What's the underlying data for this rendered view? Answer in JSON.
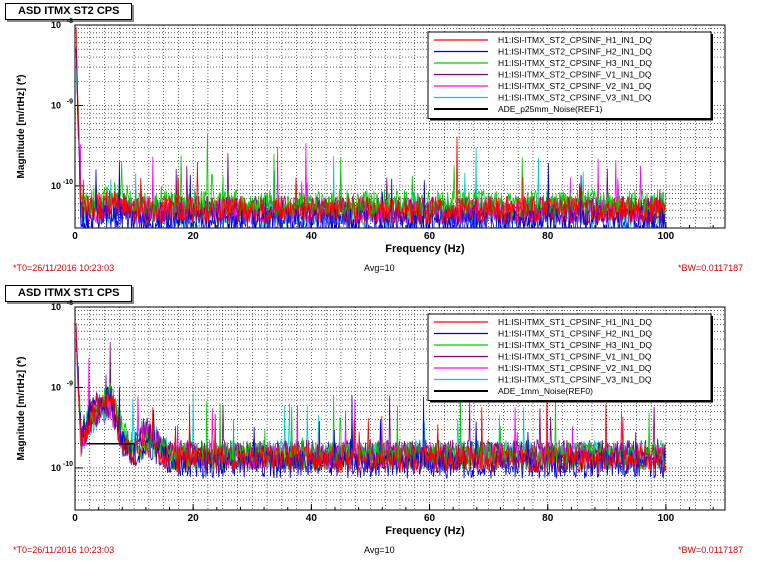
{
  "panels": [
    {
      "title": "ASD ITMX ST2 CPS",
      "t0": "*T0=26/11/2016 10:23:03",
      "avg": "Avg=10",
      "bw": "*BW=0.0117187"
    },
    {
      "title": "ASD ITMX ST1 CPS",
      "t0": "*T0=26/11/2016 10:23:03",
      "avg": "Avg=10",
      "bw": "*BW=0.0117187"
    }
  ],
  "colors": {
    "red": "#ff0000",
    "blue": "#0000dd",
    "green": "#00cc00",
    "purple": "#800080",
    "magenta": "#ff00ff",
    "cyan": "#00cccc",
    "black": "#000000",
    "brown": "#a07850"
  },
  "chart_data": [
    {
      "type": "line",
      "title": "ASD ITMX ST2 CPS",
      "xlabel": "Frequency (Hz)",
      "ylabel": "Magnitude [m/rtHz] (*)",
      "xlim": [
        0,
        110
      ],
      "ylim": [
        3e-11,
        1e-08
      ],
      "yscale": "log",
      "x_ticks": [
        0,
        20,
        40,
        60,
        80,
        100
      ],
      "y_ticks": [
        {
          "value": 1e-10,
          "label": "10-10"
        },
        {
          "value": 1e-09,
          "label": "10-9"
        },
        {
          "value": 1e-08,
          "label": "10-8"
        }
      ],
      "grid": true,
      "legend_position": "top-right",
      "series": [
        {
          "name": "H1:ISI-ITMX_ST2_CPSINF_H1_IN1_DQ",
          "color": "#ff0000",
          "x": [
            0.2,
            1,
            2,
            5,
            8,
            10,
            20,
            40,
            60,
            80,
            100
          ],
          "values": [
            8e-09,
            6e-11,
            5e-11,
            6e-11,
            6e-11,
            5e-11,
            5e-11,
            5e-11,
            5e-11,
            5e-11,
            5e-11
          ]
        },
        {
          "name": "H1:ISI-ITMX_ST2_CPSINF_H2_IN1_DQ",
          "color": "#0000dd",
          "x": [
            0.2,
            1,
            2,
            5,
            8,
            10,
            20,
            40,
            60,
            80,
            100
          ],
          "values": [
            6e-09,
            4e-11,
            3.5e-11,
            4e-11,
            4e-11,
            3.5e-11,
            3.5e-11,
            3.5e-11,
            3.5e-11,
            3.5e-11,
            3.5e-11
          ]
        },
        {
          "name": "H1:ISI-ITMX_ST2_CPSINF_H3_IN1_DQ",
          "color": "#00cc00",
          "x": [
            0.2,
            1,
            2,
            5,
            8,
            10,
            20,
            40,
            60,
            80,
            100
          ],
          "values": [
            5e-09,
            6e-11,
            6e-11,
            7e-11,
            8e-11,
            6e-11,
            6e-11,
            6e-11,
            6e-11,
            6e-11,
            6e-11
          ]
        },
        {
          "name": "H1:ISI-ITMX_ST2_CPSINF_V1_IN1_DQ",
          "color": "#800080",
          "x": [
            0.2,
            1,
            2,
            5,
            8,
            10,
            20,
            40,
            60,
            80,
            100
          ],
          "values": [
            4e-09,
            5e-11,
            5e-11,
            5e-11,
            6e-11,
            5e-11,
            5e-11,
            5e-11,
            5e-11,
            5e-11,
            5e-11
          ]
        },
        {
          "name": "H1:ISI-ITMX_ST2_CPSINF_V2_IN1_DQ",
          "color": "#ff00ff",
          "x": [
            0.2,
            1,
            2,
            5,
            8,
            10,
            20,
            40,
            60,
            80,
            100
          ],
          "values": [
            4e-09,
            5e-11,
            5e-11,
            5e-11,
            6e-11,
            5e-11,
            5e-11,
            5e-11,
            5e-11,
            5e-11,
            5e-11
          ]
        },
        {
          "name": "H1:ISI-ITMX_ST2_CPSINF_V3_IN1_DQ",
          "color": "#00cccc",
          "x": [
            0.2,
            1,
            2,
            5,
            8,
            10,
            20,
            40,
            60,
            80,
            100
          ],
          "values": [
            4e-09,
            4.5e-11,
            4.5e-11,
            5e-11,
            5e-11,
            4.5e-11,
            4.5e-11,
            4.5e-11,
            4.5e-11,
            4.5e-11,
            4.5e-11
          ]
        },
        {
          "name": "ADE_p25mm_Noise(REF1)",
          "color": "#000000",
          "x": [],
          "values": []
        }
      ]
    },
    {
      "type": "line",
      "title": "ASD ITMX ST1 CPS",
      "xlabel": "Frequency (Hz)",
      "ylabel": "Magnitude [m/rtHz] (*)",
      "xlim": [
        0,
        110
      ],
      "ylim": [
        3e-11,
        1e-08
      ],
      "yscale": "log",
      "x_ticks": [
        0,
        20,
        40,
        60,
        80,
        100
      ],
      "y_ticks": [
        {
          "value": 1e-10,
          "label": "10-10"
        },
        {
          "value": 1e-09,
          "label": "10-9"
        },
        {
          "value": 1e-08,
          "label": "10-8"
        }
      ],
      "grid": true,
      "legend_position": "top-right",
      "series": [
        {
          "name": "H1:ISI-ITMX_ST1_CPSINF_H1_IN1_DQ",
          "color": "#ff0000",
          "x": [
            0.2,
            1,
            3,
            6,
            8,
            10,
            12,
            16,
            20,
            40,
            60,
            80,
            100
          ],
          "values": [
            6e-09,
            2e-10,
            5e-10,
            8e-10,
            2e-10,
            1.5e-10,
            2e-10,
            1.3e-10,
            1.3e-10,
            1.3e-10,
            1.3e-10,
            1.3e-10,
            1.3e-10
          ]
        },
        {
          "name": "H1:ISI-ITMX_ST1_CPSINF_H2_IN1_DQ",
          "color": "#0000dd",
          "x": [
            0.2,
            1,
            3,
            6,
            8,
            10,
            12,
            16,
            20,
            40,
            60,
            80,
            100
          ],
          "values": [
            5e-09,
            2.5e-10,
            6e-10,
            7e-10,
            2e-10,
            1.5e-10,
            2e-10,
            1.2e-10,
            1.1e-10,
            1.1e-10,
            1.1e-10,
            1.1e-10,
            1.1e-10
          ]
        },
        {
          "name": "H1:ISI-ITMX_ST1_CPSINF_H3_IN1_DQ",
          "color": "#00cc00",
          "x": [
            0.2,
            1,
            3,
            6,
            8,
            10,
            12,
            16,
            20,
            40,
            60,
            80,
            100
          ],
          "values": [
            5e-09,
            2.5e-10,
            5e-10,
            8e-10,
            3e-10,
            1.5e-10,
            2e-10,
            1.4e-10,
            1.4e-10,
            1.4e-10,
            1.4e-10,
            1.4e-10,
            1.4e-10
          ]
        },
        {
          "name": "H1:ISI-ITMX_ST1_CPSINF_V1_IN1_DQ",
          "color": "#800080",
          "x": [
            0.2,
            1,
            3,
            6,
            8,
            10,
            12,
            16,
            20,
            40,
            60,
            80,
            100
          ],
          "values": [
            4e-09,
            2e-10,
            4e-10,
            6e-10,
            2e-10,
            2e-10,
            3e-10,
            1.5e-10,
            1.5e-10,
            1.5e-10,
            1.5e-10,
            1.5e-10,
            1.5e-10
          ]
        },
        {
          "name": "H1:ISI-ITMX_ST1_CPSINF_V2_IN1_DQ",
          "color": "#ff00ff",
          "x": [
            0.2,
            1,
            3,
            6,
            8,
            10,
            12,
            16,
            20,
            40,
            60,
            80,
            100
          ],
          "values": [
            4e-09,
            2e-10,
            4e-10,
            6e-10,
            2e-10,
            2e-10,
            3e-10,
            1.4e-10,
            1.4e-10,
            1.4e-10,
            1.4e-10,
            1.4e-10,
            1.4e-10
          ]
        },
        {
          "name": "H1:ISI-ITMX_ST1_CPSINF_V3_IN1_DQ",
          "color": "#00cccc",
          "x": [
            0.2,
            1,
            3,
            6,
            8,
            10,
            12,
            16,
            20,
            40,
            60,
            80,
            100
          ],
          "values": [
            4e-09,
            2e-10,
            4e-10,
            6e-10,
            2e-10,
            2e-10,
            3e-10,
            1.5e-10,
            1.5e-10,
            1.5e-10,
            1.5e-10,
            1.5e-10,
            1.5e-10
          ]
        },
        {
          "name": "ADE_1mm_Noise(REF0)",
          "color": "#000000",
          "x": [
            2,
            10
          ],
          "values": [
            2e-10,
            2e-10
          ]
        }
      ]
    }
  ]
}
